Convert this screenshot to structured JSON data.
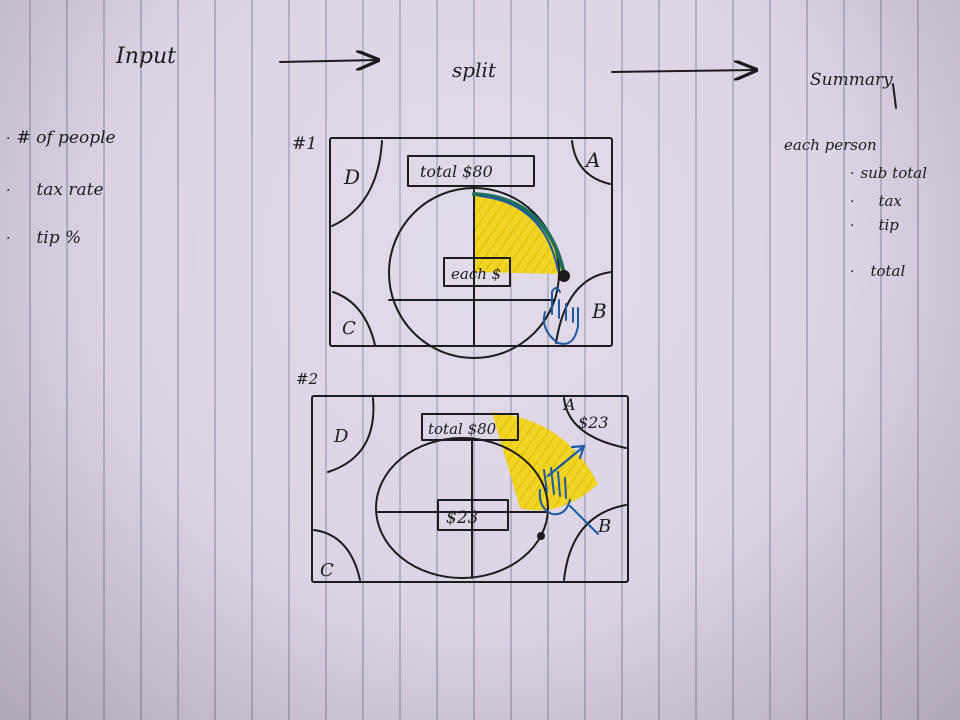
{
  "header": {
    "input": "Input",
    "split": "split",
    "summary": "Summary"
  },
  "input_list": [
    "# of people",
    "tax rate",
    "tip %"
  ],
  "summary_list": {
    "heading": "each person",
    "items": [
      "sub total",
      "tax",
      "tip",
      "total"
    ]
  },
  "sketch1": {
    "number": "#1",
    "total": "total $80",
    "center": "each $",
    "corners": {
      "a": "A",
      "b": "B",
      "c": "C",
      "d": "D"
    }
  },
  "sketch2": {
    "number": "#2",
    "total": "total $80",
    "center": "$23",
    "corners": {
      "a": "A",
      "b": "B",
      "c": "C",
      "d": "D"
    },
    "a_amount": "$23"
  },
  "colors": {
    "ink": "#1c1c1c",
    "highlight": "#f2d41a",
    "blue_pen": "#1a5aa8",
    "green_pen": "#1e6e5a",
    "paper": "#dcd3e4"
  }
}
